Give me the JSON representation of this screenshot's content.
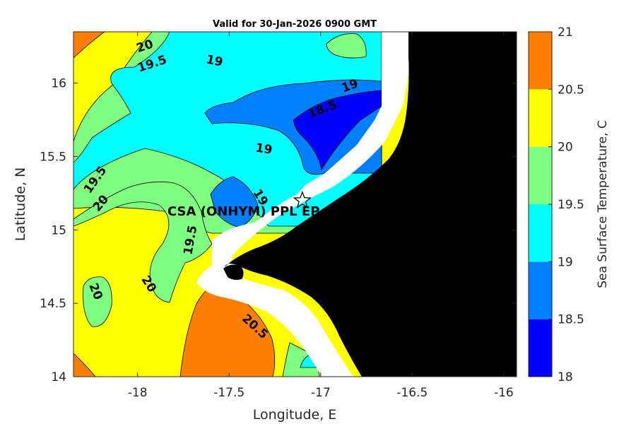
{
  "chart_data": {
    "type": "heatmap",
    "title": "Valid for 30-Jan-2026 0900 GMT",
    "xlabel": "Longitude, E",
    "ylabel": "Latitude, N",
    "xlim": [
      -18.35,
      -15.93
    ],
    "ylim": [
      14.0,
      16.35
    ],
    "x_ticks": [
      -18,
      -17.5,
      -17,
      -16.5,
      -16
    ],
    "x_tick_labels": [
      "-18",
      "-17.5",
      "-17",
      "-16.5",
      "-16"
    ],
    "y_ticks": [
      14,
      14.5,
      15,
      15.5,
      16
    ],
    "y_tick_labels": [
      "14",
      "14.5",
      "15",
      "15.5",
      "16"
    ],
    "colorbar": {
      "label": "Sea Surface Temperature, C",
      "levels": [
        18,
        18.5,
        19,
        19.5,
        20,
        20.5,
        21
      ],
      "level_labels": [
        "18",
        "18.5",
        "19",
        "19.5",
        "20",
        "20.5",
        "21"
      ],
      "colors": [
        "#0000ff",
        "#0080ff",
        "#00ffff",
        "#80ff80",
        "#ffff00",
        "#ff8000"
      ]
    },
    "contour_labels": [
      {
        "text": "20",
        "lon": -17.96,
        "lat": 16.25,
        "angle": -18
      },
      {
        "text": "19.5",
        "lon": -17.92,
        "lat": 16.13,
        "angle": -18
      },
      {
        "text": "19",
        "lon": -17.58,
        "lat": 16.15,
        "angle": 12
      },
      {
        "text": "19",
        "lon": -16.84,
        "lat": 15.98,
        "angle": -20
      },
      {
        "text": "18.5",
        "lon": -16.99,
        "lat": 15.82,
        "angle": -20
      },
      {
        "text": "19",
        "lon": -17.31,
        "lat": 15.55,
        "angle": 8
      },
      {
        "text": "19.5",
        "lon": -18.23,
        "lat": 15.34,
        "angle": -55
      },
      {
        "text": "20",
        "lon": -18.2,
        "lat": 15.18,
        "angle": -50
      },
      {
        "text": "19",
        "lon": -17.33,
        "lat": 15.22,
        "angle": 58
      },
      {
        "text": "19.5",
        "lon": -17.71,
        "lat": 14.93,
        "angle": -80
      },
      {
        "text": "20",
        "lon": -17.94,
        "lat": 14.63,
        "angle": 58
      },
      {
        "text": "20",
        "lon": -18.23,
        "lat": 14.58,
        "angle": 68
      },
      {
        "text": "20.5",
        "lon": -17.36,
        "lat": 14.34,
        "angle": 42
      }
    ],
    "site": {
      "label": "CSA (ONHYM) PPL EP",
      "lon": -17.1,
      "lat": 15.2
    },
    "land_color": "#000000",
    "nodata_color": "#ffffff"
  }
}
